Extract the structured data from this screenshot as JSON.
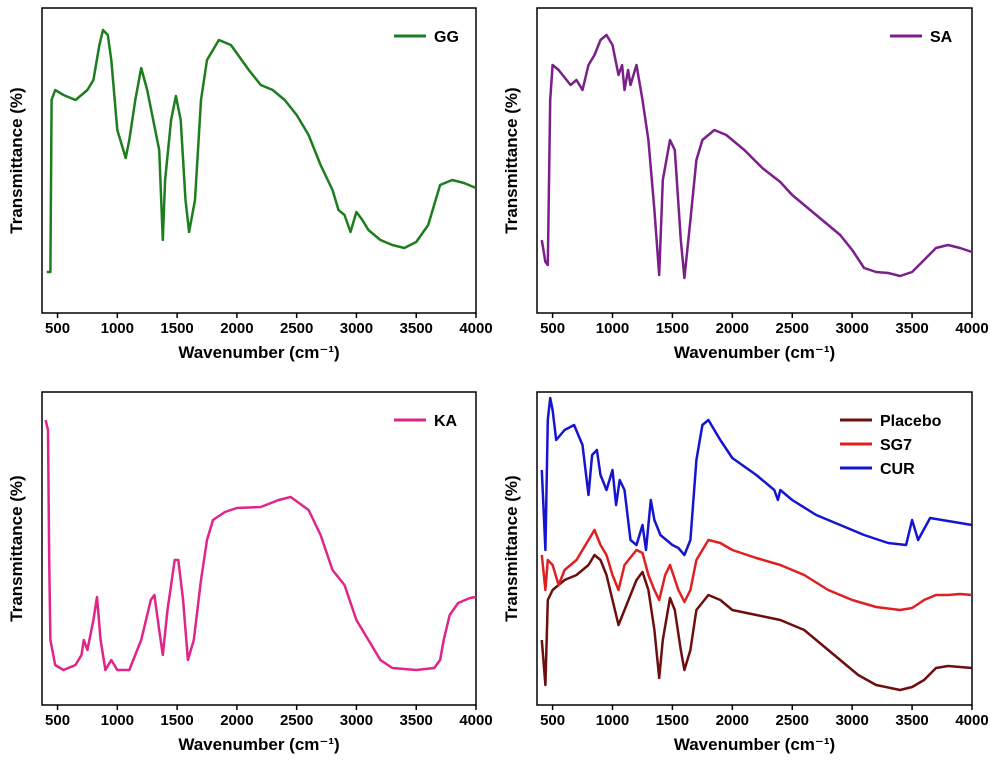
{
  "chart_data": [
    {
      "type": "line",
      "xlabel": "Wavenumber (cm⁻¹)",
      "ylabel": "Transmittance (%)",
      "xlim": [
        370,
        4000
      ],
      "xticks": [
        500,
        1000,
        1500,
        2000,
        2500,
        3000,
        3500,
        4000
      ],
      "ylim": [
        0,
        305
      ],
      "legend": "upper right",
      "series": [
        {
          "name": "GG",
          "color": "#1e7d1e",
          "x": [
            410,
            440,
            450,
            480,
            550,
            650,
            750,
            800,
            850,
            880,
            920,
            950,
            1000,
            1050,
            1070,
            1100,
            1150,
            1200,
            1250,
            1300,
            1350,
            1380,
            1400,
            1450,
            1490,
            1530,
            1570,
            1600,
            1650,
            1700,
            1750,
            1850,
            1950,
            2100,
            2200,
            2300,
            2400,
            2500,
            2600,
            2700,
            2800,
            2850,
            2900,
            2950,
            3000,
            3050,
            3100,
            3200,
            3300,
            3400,
            3500,
            3600,
            3700,
            3800,
            3900,
            4000
          ],
          "values": [
            41,
            41,
            213,
            223,
            218,
            213,
            223,
            233,
            268,
            283,
            278,
            253,
            183,
            163,
            155,
            173,
            213,
            245,
            223,
            193,
            163,
            73,
            133,
            193,
            217,
            193,
            113,
            81,
            113,
            213,
            253,
            273,
            268,
            243,
            228,
            223,
            213,
            198,
            178,
            148,
            123,
            103,
            98,
            81,
            101,
            93,
            83,
            73,
            68,
            65,
            71,
            88,
            128,
            133,
            130,
            125
          ]
        }
      ]
    },
    {
      "type": "line",
      "xlabel": "Wavenumber (cm⁻¹)",
      "ylabel": "Transmittance (%)",
      "xlim": [
        370,
        4000
      ],
      "xticks": [
        500,
        1000,
        1500,
        2000,
        2500,
        3000,
        3500,
        4000
      ],
      "ylim": [
        0,
        305
      ],
      "legend": "upper right",
      "series": [
        {
          "name": "SA",
          "color": "#7b1f8a",
          "x": [
            410,
            440,
            460,
            480,
            500,
            550,
            650,
            700,
            750,
            800,
            850,
            900,
            950,
            1000,
            1050,
            1080,
            1100,
            1130,
            1150,
            1200,
            1250,
            1300,
            1350,
            1390,
            1420,
            1480,
            1520,
            1570,
            1600,
            1650,
            1700,
            1750,
            1850,
            1950,
            2100,
            2250,
            2400,
            2500,
            2650,
            2800,
            2900,
            3000,
            3100,
            3200,
            3300,
            3400,
            3500,
            3600,
            3700,
            3800,
            3900,
            4000
          ],
          "values": [
            73,
            51,
            48,
            213,
            248,
            243,
            228,
            233,
            223,
            248,
            258,
            273,
            278,
            268,
            238,
            248,
            223,
            243,
            228,
            248,
            213,
            173,
            103,
            38,
            133,
            173,
            163,
            73,
            35,
            93,
            153,
            173,
            183,
            178,
            163,
            145,
            131,
            118,
            103,
            88,
            78,
            63,
            45,
            41,
            40,
            37,
            41,
            53,
            65,
            68,
            65,
            61
          ]
        }
      ]
    },
    {
      "type": "line",
      "xlabel": "Wavenumber (cm⁻¹)",
      "ylabel": "Transmittance (%)",
      "xlim": [
        370,
        4000
      ],
      "xticks": [
        500,
        1000,
        1500,
        2000,
        2500,
        3000,
        3500,
        4000
      ],
      "ylim": [
        0,
        313
      ],
      "legend": "upper right",
      "series": [
        {
          "name": "KA",
          "color": "#e0248a",
          "x": [
            400,
            420,
            430,
            440,
            480,
            550,
            650,
            700,
            720,
            750,
            800,
            830,
            860,
            900,
            950,
            1000,
            1100,
            1200,
            1280,
            1310,
            1350,
            1380,
            1420,
            1480,
            1510,
            1550,
            1590,
            1640,
            1700,
            1750,
            1800,
            1900,
            2000,
            2200,
            2350,
            2450,
            2600,
            2700,
            2800,
            2900,
            3000,
            3100,
            3200,
            3300,
            3500,
            3650,
            3700,
            3730,
            3780,
            3850,
            3950,
            4000
          ],
          "values": [
            285,
            275,
            145,
            65,
            40,
            35,
            40,
            50,
            65,
            55,
            85,
            108,
            65,
            35,
            45,
            35,
            35,
            65,
            105,
            110,
            75,
            50,
            95,
            145,
            145,
            105,
            45,
            65,
            125,
            165,
            185,
            193,
            197,
            198,
            205,
            208,
            195,
            170,
            135,
            120,
            85,
            65,
            45,
            37,
            35,
            37,
            45,
            65,
            90,
            102,
            107,
            108
          ]
        }
      ]
    },
    {
      "type": "line",
      "xlabel": "Wavenumber (cm⁻¹)",
      "ylabel": "Transmittance (%)",
      "xlim": [
        370,
        4000
      ],
      "xticks": [
        500,
        1000,
        1500,
        2000,
        2500,
        3000,
        3500,
        4000
      ],
      "ylim": [
        0,
        313
      ],
      "legend": "upper right",
      "series": [
        {
          "name": "Placebo",
          "color": "#6b0f0f",
          "x": [
            410,
            440,
            460,
            500,
            600,
            700,
            800,
            850,
            900,
            950,
            1000,
            1050,
            1100,
            1200,
            1250,
            1300,
            1350,
            1390,
            1420,
            1480,
            1520,
            1570,
            1600,
            1650,
            1700,
            1800,
            1900,
            2000,
            2200,
            2400,
            2600,
            2800,
            2950,
            3050,
            3200,
            3400,
            3500,
            3600,
            3700,
            3800,
            3900,
            4000
          ],
          "values": [
            65,
            20,
            105,
            115,
            125,
            130,
            140,
            150,
            145,
            130,
            105,
            80,
            95,
            125,
            133,
            115,
            75,
            27,
            65,
            107,
            95,
            55,
            35,
            55,
            95,
            110,
            105,
            95,
            90,
            85,
            75,
            55,
            40,
            30,
            20,
            15,
            18,
            25,
            37,
            39,
            38,
            37
          ]
        },
        {
          "name": "SG7",
          "color": "#e02020",
          "x": [
            410,
            440,
            460,
            500,
            550,
            600,
            700,
            800,
            850,
            900,
            950,
            1000,
            1050,
            1100,
            1200,
            1250,
            1300,
            1350,
            1390,
            1440,
            1480,
            1550,
            1600,
            1650,
            1700,
            1800,
            1900,
            2000,
            2200,
            2400,
            2600,
            2800,
            3000,
            3200,
            3400,
            3500,
            3600,
            3700,
            3800,
            3900,
            4000
          ],
          "values": [
            150,
            115,
            145,
            140,
            120,
            135,
            145,
            165,
            175,
            160,
            150,
            130,
            115,
            140,
            155,
            152,
            130,
            115,
            105,
            130,
            140,
            115,
            103,
            115,
            145,
            165,
            162,
            155,
            147,
            140,
            130,
            115,
            105,
            98,
            95,
            97,
            105,
            110,
            110,
            111,
            110
          ]
        },
        {
          "name": "CUR",
          "color": "#1515d0",
          "x": [
            410,
            440,
            460,
            480,
            500,
            530,
            600,
            680,
            750,
            800,
            830,
            870,
            900,
            950,
            1000,
            1030,
            1060,
            1100,
            1150,
            1200,
            1250,
            1280,
            1320,
            1350,
            1400,
            1450,
            1500,
            1550,
            1600,
            1650,
            1700,
            1750,
            1800,
            1900,
            2000,
            2200,
            2350,
            2380,
            2400,
            2500,
            2700,
            2900,
            3100,
            3300,
            3450,
            3500,
            3550,
            3650,
            3750,
            3850,
            4000
          ],
          "values": [
            235,
            155,
            285,
            307,
            295,
            265,
            275,
            280,
            260,
            210,
            250,
            255,
            230,
            215,
            235,
            200,
            225,
            215,
            165,
            160,
            180,
            155,
            205,
            185,
            170,
            165,
            160,
            157,
            150,
            165,
            245,
            280,
            285,
            265,
            247,
            230,
            215,
            205,
            215,
            205,
            190,
            180,
            170,
            162,
            160,
            185,
            165,
            187,
            185,
            183,
            180
          ]
        }
      ]
    }
  ]
}
